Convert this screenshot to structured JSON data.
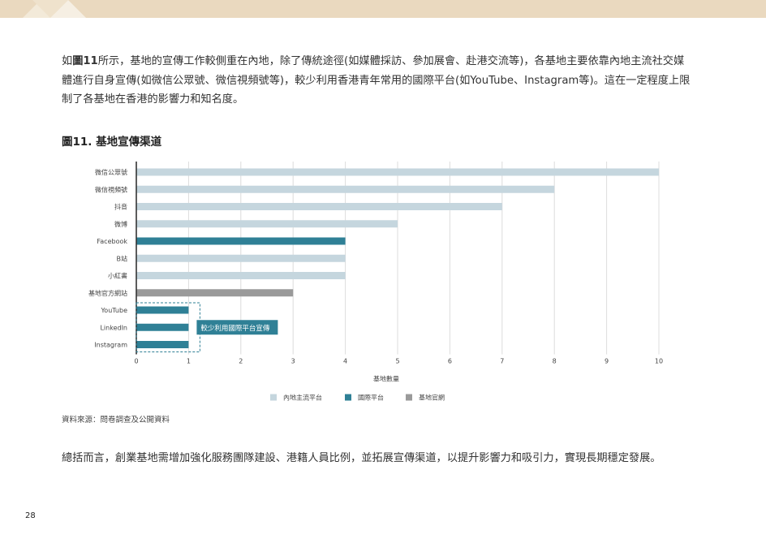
{
  "paragraph1": {
    "pre": "如",
    "ref": "圖11",
    "text": "所示，基地的宣傳工作較側重在內地，除了傳統途徑(如媒體採訪、參加展會、赴港交流等)，各基地主要依靠內地主流社交媒體進行自身宣傳(如微信公眾號、微信視頻號等)，較少利用香港青年常用的國際平台(如YouTube、Instagram等)。這在一定程度上限制了各基地在香港的影響力和知名度。"
  },
  "figure_title": "圖11. 基地宣傳渠道",
  "source": "資料來源：問卷調查及公開資料",
  "paragraph2": "總括而言，創業基地需增加強化服務團隊建設、港籍人員比例，並拓展宣傳渠道，以提升影響力和吸引力，實現長期穩定發展。",
  "page_number": "28",
  "colors": {
    "header_band": "#ead9bf",
    "mainland": "#c5d6de",
    "international": "#2f8096",
    "official": "#9a9a9a"
  },
  "chart_data": {
    "type": "bar",
    "orientation": "horizontal",
    "xlabel": "基地數量",
    "xlim": [
      0,
      10
    ],
    "xticks": [
      "0",
      "1",
      "2",
      "3",
      "4",
      "5",
      "6",
      "7",
      "8",
      "9",
      "10"
    ],
    "grid": true,
    "legend_position": "bottom",
    "legend": [
      {
        "name": "內地主流平台",
        "color": "#c5d6de"
      },
      {
        "name": "國際平台",
        "color": "#2f8096"
      },
      {
        "name": "基地官網",
        "color": "#9a9a9a"
      }
    ],
    "bars": [
      {
        "category": "微信公眾號",
        "value": 10,
        "group": 0
      },
      {
        "category": "微信視頻號",
        "value": 8,
        "group": 0
      },
      {
        "category": "抖音",
        "value": 7,
        "group": 0
      },
      {
        "category": "微博",
        "value": 5,
        "group": 0
      },
      {
        "category": "Facebook",
        "value": 4,
        "group": 1
      },
      {
        "category": "B站",
        "value": 4,
        "group": 0
      },
      {
        "category": "小紅書",
        "value": 4,
        "group": 0
      },
      {
        "category": "基地官方網站",
        "value": 3,
        "group": 2
      },
      {
        "category": "YouTube",
        "value": 1,
        "group": 1
      },
      {
        "category": "LinkedIn",
        "value": 1,
        "group": 1
      },
      {
        "category": "Instagram",
        "value": 1,
        "group": 1
      }
    ],
    "annotation": {
      "text": "較少利用國際平台宣傳",
      "from_category": "YouTube",
      "to_category": "Instagram"
    }
  }
}
